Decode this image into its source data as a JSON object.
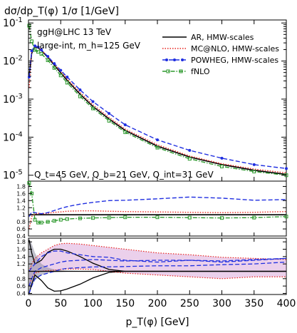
{
  "chart_data": {
    "type": "line",
    "ylabel": "dσ/dp_T(φ) 1/σ  [1/GeV]",
    "xlabel": "p_T(φ) [GeV]",
    "xlim": [
      0,
      400
    ],
    "xticks": [
      0,
      50,
      100,
      150,
      200,
      250,
      300,
      350,
      400
    ],
    "annotations": {
      "process": "ggH@LHC 13 TeV",
      "setup": "large-int, m_h=125 GeV",
      "scales": "Q_t=45 GeV, Q_b=21 GeV, Q_int=31 GeV"
    },
    "legend_position": "top-right",
    "series_meta": [
      {
        "name": "AR, HMW-scales",
        "color": "#000000",
        "style": "solid"
      },
      {
        "name": "MC@NLO, HMW-scales",
        "color": "#e8251f",
        "style": "dotted"
      },
      {
        "name": "POWHEG, HMW-scales",
        "color": "#1f2ee0",
        "style": "dashed"
      },
      {
        "name": "fNLO",
        "color": "#2f9a2f",
        "style": "dashdot"
      }
    ],
    "panels": [
      {
        "id": "main",
        "yscale": "log",
        "ylim": [
          7e-06,
          0.12
        ],
        "yticks": [
          {
            "value": 0.1,
            "base": "10",
            "exp": "-1"
          },
          {
            "value": 0.01,
            "base": "10",
            "exp": "-2"
          },
          {
            "value": 0.001,
            "base": "10",
            "exp": "-3"
          },
          {
            "value": 0.0001,
            "base": "10",
            "exp": "-4"
          },
          {
            "value": 1e-05,
            "base": "10",
            "exp": "-5"
          }
        ],
        "x": [
          1,
          5,
          10,
          15,
          20,
          30,
          40,
          50,
          60,
          80,
          100,
          125,
          150,
          200,
          250,
          300,
          350,
          400
        ],
        "series": [
          {
            "values": [
              0.004,
              0.016,
              0.0235,
              0.0222,
              0.019,
              0.0125,
              0.0078,
              0.0049,
              0.0031,
              0.00135,
              0.00064,
              0.0003,
              0.00015,
              5.8e-05,
              3e-05,
              1.9e-05,
              1.35e-05,
              1.05e-05
            ]
          },
          {
            "values": [
              0.002,
              0.017,
              0.024,
              0.023,
              0.0195,
              0.013,
              0.0083,
              0.0053,
              0.0034,
              0.0015,
              0.00071,
              0.00033,
              0.000163,
              6.3e-05,
              3.2e-05,
              2e-05,
              1.45e-05,
              1.15e-05
            ]
          },
          {
            "values": [
              0.0038,
              0.0185,
              0.025,
              0.0232,
              0.0196,
              0.0132,
              0.0086,
              0.0057,
              0.0038,
              0.00175,
              0.00086,
              0.00042,
              0.000211,
              8.5e-05,
              4.5e-05,
              2.8e-05,
              1.9e-05,
              1.5e-05
            ]
          },
          {
            "values": [
              0.085,
              0.033,
              0.0195,
              0.0175,
              0.0155,
              0.0105,
              0.0066,
              0.0042,
              0.0027,
              0.00118,
              0.00057,
              0.00027,
              0.000135,
              5.3e-05,
              2.7e-05,
              1.7e-05,
              1.25e-05,
              1e-05
            ]
          }
        ]
      },
      {
        "id": "ratio",
        "yscale": "linear",
        "ylim": [
          0.4,
          1.95
        ],
        "yticks": [
          0.4,
          0.6,
          0.8,
          1,
          1.2,
          1.4,
          1.6,
          1.8
        ],
        "ytick_labels": [
          "0.4",
          "0.6",
          "0.8",
          "1",
          "1.2",
          "1.4",
          "1.6",
          "1.8"
        ],
        "x": [
          1,
          5,
          10,
          15,
          20,
          30,
          40,
          50,
          60,
          80,
          100,
          125,
          150,
          200,
          250,
          300,
          350,
          400
        ],
        "series": [
          {
            "values": [
              1,
              1,
              1,
              1,
              1,
              1,
              1,
              1,
              1,
              1,
              1,
              1,
              1,
              1,
              1,
              1,
              1,
              1
            ]
          },
          {
            "values": [
              0.6,
              0.95,
              1.02,
              1.04,
              1.03,
              1.04,
              1.07,
              1.08,
              1.1,
              1.11,
              1.11,
              1.1,
              1.09,
              1.08,
              1.07,
              1.06,
              1.07,
              1.09
            ]
          },
          {
            "values": [
              0.95,
              1.08,
              1.06,
              1.04,
              1.03,
              1.06,
              1.12,
              1.18,
              1.23,
              1.3,
              1.35,
              1.4,
              1.41,
              1.45,
              1.5,
              1.47,
              1.41,
              1.43
            ]
          },
          {
            "values": [
              1.9,
              1.6,
              0.86,
              0.78,
              0.78,
              0.8,
              0.83,
              0.86,
              0.88,
              0.9,
              0.91,
              0.92,
              0.93,
              0.93,
              0.92,
              0.91,
              0.92,
              0.95
            ]
          }
        ]
      },
      {
        "id": "bands",
        "yscale": "linear",
        "ylim": [
          0.37,
          1.9
        ],
        "yticks": [
          0.4,
          0.6,
          0.8,
          1,
          1.2,
          1.4,
          1.6,
          1.8
        ],
        "ytick_labels": [
          "0.4",
          "0.6",
          "0.8",
          "1",
          "1.2",
          "1.4",
          "1.6",
          "1.8"
        ],
        "x": [
          1,
          5,
          10,
          20,
          30,
          40,
          50,
          60,
          80,
          100,
          125,
          150,
          200,
          250,
          300,
          350,
          400
        ],
        "band_ar": {
          "upper": [
            1.9,
            1.75,
            1.5,
            1.2,
            1.1,
            1.05,
            1.03,
            1.02,
            1.01,
            1.01,
            1.01,
            1.01,
            1.01,
            1.01,
            1.01,
            1.01,
            1.01
          ],
          "lower": [
            0.45,
            0.6,
            0.75,
            0.9,
            0.95,
            0.97,
            0.98,
            0.99,
            0.99,
            0.99,
            0.99,
            0.99,
            0.99,
            0.99,
            0.99,
            0.99,
            0.99
          ]
        },
        "ar_envelope_upper": [
          1.85,
          1.5,
          1.2,
          1.3,
          1.52,
          1.6,
          1.6,
          1.55,
          1.4,
          1.22,
          1.05,
          1.0,
          1.0,
          1.0,
          1.0,
          1.0,
          1.0
        ],
        "ar_envelope_lower": [
          0.4,
          0.65,
          0.9,
          0.75,
          0.55,
          0.46,
          0.47,
          0.52,
          0.65,
          0.82,
          0.97,
          1.0,
          1.0,
          1.0,
          1.0,
          1.0,
          1.0
        ],
        "band_mcatnlo": {
          "upper": [
            1.0,
            1.2,
            1.35,
            1.5,
            1.6,
            1.7,
            1.75,
            1.76,
            1.74,
            1.7,
            1.65,
            1.6,
            1.5,
            1.45,
            1.38,
            1.35,
            1.32
          ],
          "lower": [
            0.6,
            0.8,
            0.95,
            1.0,
            1.02,
            1.03,
            1.05,
            1.06,
            1.06,
            1.05,
            1.0,
            0.95,
            0.9,
            0.85,
            0.8,
            0.85,
            0.85
          ]
        },
        "powheg_upper": [
          1.0,
          1.1,
          1.2,
          1.4,
          1.5,
          1.55,
          1.55,
          1.5,
          1.45,
          1.4,
          1.38,
          1.3,
          1.25,
          1.3,
          1.25,
          1.3,
          1.35
        ],
        "powheg_lower": [
          0.4,
          0.6,
          0.8,
          0.9,
          0.95,
          1.0,
          1.05,
          1.08,
          1.1,
          1.12,
          1.12,
          1.13,
          1.15,
          1.15,
          1.18,
          1.2,
          1.25
        ],
        "powheg_central": [
          0.6,
          0.8,
          1.0,
          1.1,
          1.15,
          1.2,
          1.25,
          1.28,
          1.3,
          1.32,
          1.3,
          1.28,
          1.3,
          1.3,
          1.28,
          1.32,
          1.35
        ]
      }
    ]
  }
}
